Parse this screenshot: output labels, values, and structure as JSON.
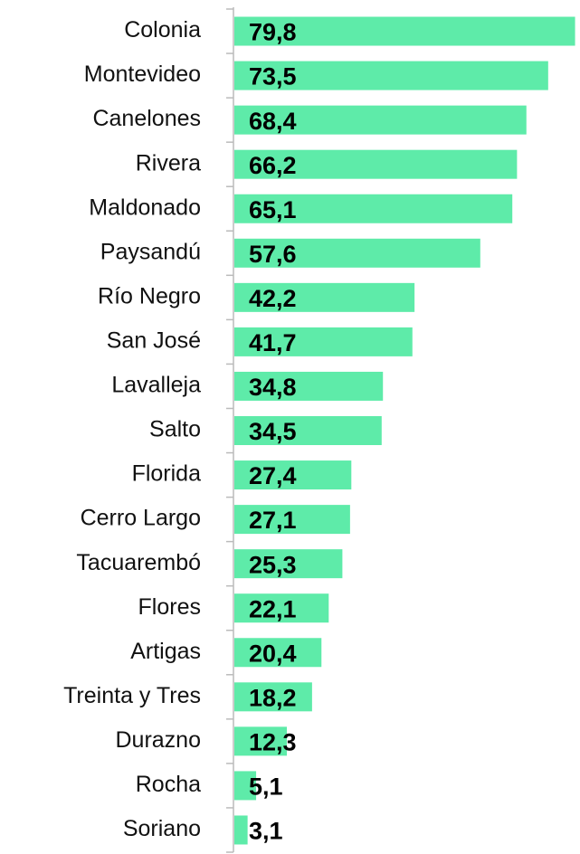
{
  "chart_data": {
    "type": "bar",
    "orientation": "horizontal",
    "categories": [
      "Colonia",
      "Montevideo",
      "Canelones",
      "Rivera",
      "Maldonado",
      "Paysandú",
      "Río Negro",
      "San José",
      "Lavalleja",
      "Salto",
      "Florida",
      "Cerro Largo",
      "Tacuarembó",
      "Flores",
      "Artigas",
      "Treinta y Tres",
      "Durazno",
      "Rocha",
      "Soriano"
    ],
    "values": [
      79.8,
      73.5,
      68.4,
      66.2,
      65.1,
      57.6,
      42.2,
      41.7,
      34.8,
      34.5,
      27.4,
      27.1,
      25.3,
      22.1,
      20.4,
      18.2,
      12.3,
      5.1,
      3.1
    ],
    "value_labels": [
      "79,8",
      "73,5",
      "68,4",
      "66,2",
      "65,1",
      "57,6",
      "42,2",
      "41,7",
      "34,8",
      "34,5",
      "27,4",
      "27,1",
      "25,3",
      "22,1",
      "20,4",
      "18,2",
      "12,3",
      "5,1",
      "3,1"
    ],
    "color": "#5eeba9",
    "xlim": [
      0,
      80
    ]
  }
}
